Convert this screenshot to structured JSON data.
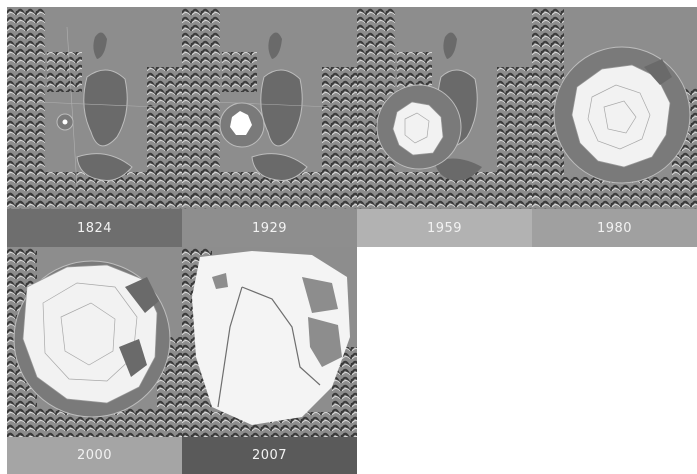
{
  "panels": [
    {
      "year": "1824",
      "urban_extent": 0.01,
      "label_color": "#6e6e6e"
    },
    {
      "year": "1929",
      "urban_extent": 0.04,
      "label_color": "#8e8e8e"
    },
    {
      "year": "1959",
      "urban_extent": 0.18,
      "label_color": "#b2b2b2"
    },
    {
      "year": "1980",
      "urban_extent": 0.4,
      "label_color": "#a0a0a0"
    },
    {
      "year": "2000",
      "urban_extent": 0.62,
      "label_color": "#a5a5a5"
    },
    {
      "year": "2007",
      "urban_extent": 0.85,
      "label_color": "#5a5a5a"
    }
  ]
}
